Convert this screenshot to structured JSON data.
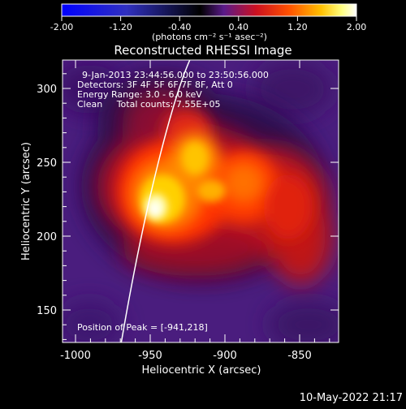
{
  "colorbar": {
    "tick_labels": [
      "-2.00",
      "-1.20",
      "-0.40",
      "0.40",
      "1.20",
      "2.00"
    ],
    "units_label": "(photons cm⁻² s⁻¹ asec⁻²)",
    "colors": [
      "#0000ff",
      "#000000",
      "#8a2be2",
      "#ff0000",
      "#ffff00",
      "#ffffff"
    ]
  },
  "plot": {
    "title": "Reconstructed RHESSI Image",
    "xlabel": "Heliocentric X (arcsec)",
    "ylabel": "Heliocentric Y (arcsec)",
    "x_ticks": [
      "-1000",
      "-950",
      "-900",
      "-850"
    ],
    "y_ticks": [
      "150",
      "200",
      "250",
      "300"
    ],
    "annotations": {
      "time_range": "9-Jan-2013 23:44:56.000 to 23:50:56.000",
      "detectors": "Detectors: 3F 4F 5F 6F 7F 8F, Att 0",
      "energy_range": "Energy Range: 3.0 - 6.0 keV",
      "method_counts": "Clean     Total counts: 7.55E+05",
      "peak_position": "Position of Peak = [-941,218]"
    }
  },
  "footer": {
    "timestamp": "10-May-2022 21:17"
  }
}
